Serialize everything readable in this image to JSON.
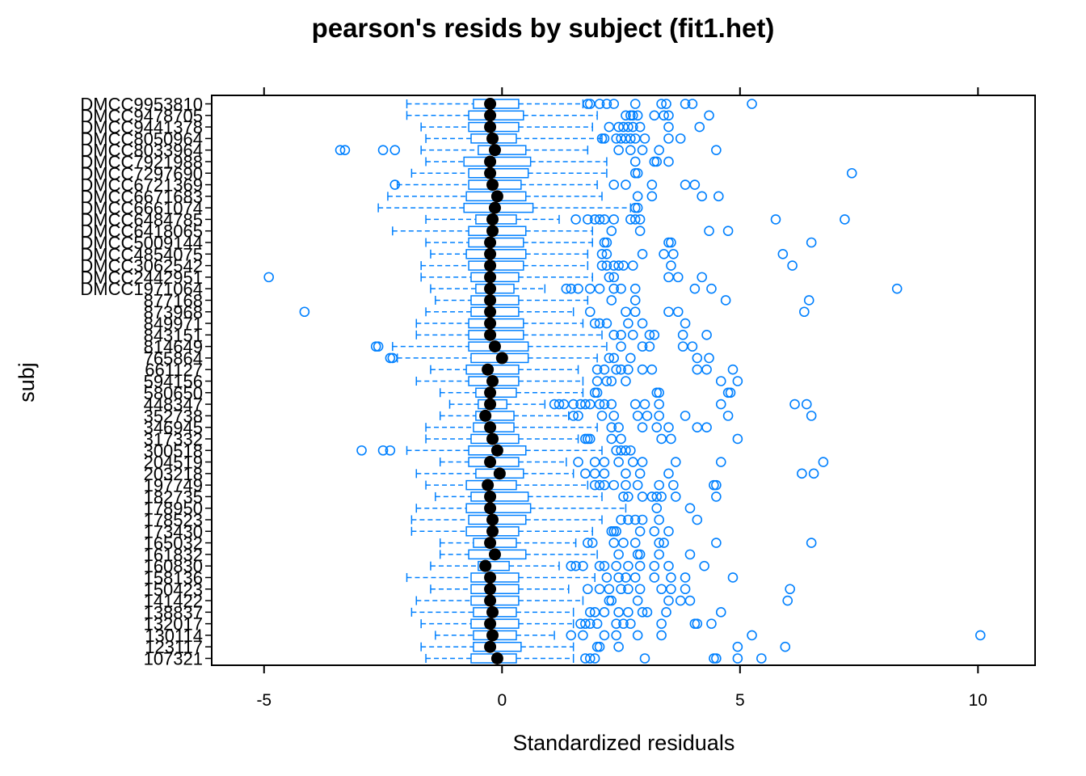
{
  "chart_data": {
    "type": "boxplot",
    "title": "pearson's resids by subject (fit1.het)",
    "xlabel": "Standardized residuals",
    "ylabel": "subj",
    "xlim": [
      -6.1,
      11.2
    ],
    "xticks": [
      -5,
      0,
      5,
      10
    ],
    "xtick_labels": [
      "-5",
      "0",
      "5",
      "10"
    ],
    "grid": false,
    "colors": {
      "box": "#0080ff",
      "median": "#000000",
      "frame": "#000000"
    },
    "groups": [
      {
        "label": "DMCC9953810",
        "whisker_low": -2.0,
        "q1": -0.6,
        "median": -0.25,
        "q3": 0.35,
        "whisker_high": 1.7,
        "outliers": [
          1.8,
          1.85,
          2.05,
          2.2,
          2.35,
          2.8,
          3.35,
          3.45,
          3.85,
          4.0,
          5.25
        ]
      },
      {
        "label": "DMCC9478705",
        "whisker_low": -2.0,
        "q1": -0.7,
        "median": -0.25,
        "q3": 0.45,
        "whisker_high": 2.0,
        "outliers": [
          2.6,
          2.7,
          2.75,
          2.85,
          3.2,
          3.4,
          3.5,
          4.35
        ]
      },
      {
        "label": "DMCC9441378",
        "whisker_low": -1.7,
        "q1": -0.7,
        "median": -0.25,
        "q3": 0.35,
        "whisker_high": 1.9,
        "outliers": [
          2.25,
          2.45,
          2.55,
          2.65,
          2.75,
          2.9,
          3.5,
          4.15
        ]
      },
      {
        "label": "DMCC8050964",
        "whisker_low": -1.6,
        "q1": -0.65,
        "median": -0.2,
        "q3": 0.3,
        "whisker_high": 2.1,
        "outliers": [
          2.1,
          2.15,
          2.4,
          2.5,
          2.6,
          2.7,
          2.8,
          3.0,
          3.5,
          3.75
        ]
      },
      {
        "label": "DMCC8033964",
        "whisker_low": -1.7,
        "q1": -0.5,
        "median": -0.15,
        "q3": 0.5,
        "whisker_high": 1.8,
        "outliers": [
          -3.4,
          -3.3,
          -2.5,
          -2.25,
          2.45,
          2.7,
          2.95,
          3.3,
          4.5
        ]
      },
      {
        "label": "DMCC7921988",
        "whisker_low": -1.6,
        "q1": -0.8,
        "median": -0.25,
        "q3": 0.6,
        "whisker_high": 2.2,
        "outliers": [
          2.8,
          3.2,
          3.25,
          3.5
        ]
      },
      {
        "label": "DMCC7297690",
        "whisker_low": -1.9,
        "q1": -0.7,
        "median": -0.25,
        "q3": 0.55,
        "whisker_high": 2.2,
        "outliers": [
          2.8,
          2.85,
          7.35
        ]
      },
      {
        "label": "DMCC6721369",
        "whisker_low": -2.2,
        "q1": -0.7,
        "median": -0.2,
        "q3": 0.4,
        "whisker_high": 2.0,
        "outliers": [
          -2.25,
          2.35,
          2.6,
          3.15,
          3.85,
          4.05
        ]
      },
      {
        "label": "DMCC6671683",
        "whisker_low": -2.4,
        "q1": -0.75,
        "median": -0.1,
        "q3": 0.5,
        "whisker_high": 2.1,
        "outliers": [
          2.85,
          3.15,
          4.2,
          4.55
        ]
      },
      {
        "label": "DMCC6661074",
        "whisker_low": -2.6,
        "q1": -0.8,
        "median": -0.15,
        "q3": 0.65,
        "whisker_high": 2.7,
        "outliers": [
          2.8,
          2.85
        ]
      },
      {
        "label": "DMCC6484785",
        "whisker_low": -1.6,
        "q1": -0.55,
        "median": -0.2,
        "q3": 0.3,
        "whisker_high": 1.2,
        "outliers": [
          1.55,
          1.8,
          1.95,
          2.05,
          2.15,
          2.35,
          2.7,
          2.8,
          2.9,
          5.75,
          7.2
        ]
      },
      {
        "label": "DMCC6418065",
        "whisker_low": -2.3,
        "q1": -0.7,
        "median": -0.2,
        "q3": 0.5,
        "whisker_high": 1.9,
        "outliers": [
          2.3,
          2.9,
          4.35,
          4.75
        ]
      },
      {
        "label": "DMCC5009144",
        "whisker_low": -1.6,
        "q1": -0.7,
        "median": -0.25,
        "q3": 0.45,
        "whisker_high": 1.9,
        "outliers": [
          2.15,
          2.2,
          3.55,
          3.5,
          6.5
        ]
      },
      {
        "label": "DMCC4854075",
        "whisker_low": -1.5,
        "q1": -0.75,
        "median": -0.25,
        "q3": 0.5,
        "whisker_high": 1.8,
        "outliers": [
          2.1,
          2.2,
          2.95,
          3.4,
          3.6,
          5.9
        ]
      },
      {
        "label": "DMCC3062542",
        "whisker_low": -1.7,
        "q1": -0.7,
        "median": -0.25,
        "q3": 0.45,
        "whisker_high": 1.8,
        "outliers": [
          2.1,
          2.2,
          2.35,
          2.45,
          2.55,
          2.75,
          3.55,
          6.1
        ]
      },
      {
        "label": "DMCC2442951",
        "whisker_low": -1.7,
        "q1": -0.65,
        "median": -0.25,
        "q3": 0.35,
        "whisker_high": 1.9,
        "outliers": [
          -4.9,
          2.25,
          2.35,
          3.5,
          3.7,
          4.2
        ]
      },
      {
        "label": "DMCC1971064",
        "whisker_low": -1.5,
        "q1": -0.55,
        "median": -0.25,
        "q3": 0.25,
        "whisker_high": 0.9,
        "outliers": [
          1.35,
          1.45,
          1.6,
          1.85,
          2.05,
          2.35,
          2.5,
          2.8,
          4.05,
          4.4,
          8.3
        ]
      },
      {
        "label": "877168",
        "whisker_low": -1.4,
        "q1": -0.65,
        "median": -0.25,
        "q3": 0.35,
        "whisker_high": 1.8,
        "outliers": [
          2.3,
          2.8,
          4.7,
          6.45
        ]
      },
      {
        "label": "873968",
        "whisker_low": -1.6,
        "q1": -0.65,
        "median": -0.25,
        "q3": 0.35,
        "whisker_high": 1.5,
        "outliers": [
          -4.15,
          1.85,
          2.6,
          2.8,
          3.5,
          3.7,
          6.35
        ]
      },
      {
        "label": "849971",
        "whisker_low": -1.8,
        "q1": -0.7,
        "median": -0.25,
        "q3": 0.45,
        "whisker_high": 1.7,
        "outliers": [
          1.95,
          2.05,
          2.2,
          2.65,
          2.95,
          3.85
        ]
      },
      {
        "label": "843151",
        "whisker_low": -1.8,
        "q1": -0.7,
        "median": -0.25,
        "q3": 0.45,
        "whisker_high": 2.1,
        "outliers": [
          2.35,
          2.5,
          2.75,
          3.1,
          3.2,
          3.8,
          4.3
        ]
      },
      {
        "label": "814649",
        "whisker_low": -2.3,
        "q1": -0.7,
        "median": -0.15,
        "q3": 0.55,
        "whisker_high": 2.2,
        "outliers": [
          -2.65,
          -2.6,
          2.5,
          2.95,
          3.1,
          3.8,
          4.0
        ]
      },
      {
        "label": "765864",
        "whisker_low": -2.2,
        "q1": -0.65,
        "median": 0.0,
        "q3": 0.55,
        "whisker_high": 2.0,
        "outliers": [
          -2.35,
          -2.3,
          2.25,
          2.35,
          2.7,
          4.1,
          4.35
        ]
      },
      {
        "label": "661127",
        "whisker_low": -1.5,
        "q1": -0.75,
        "median": -0.3,
        "q3": 0.35,
        "whisker_high": 1.6,
        "outliers": [
          2.0,
          2.15,
          2.4,
          2.5,
          2.65,
          2.95,
          3.15,
          4.1,
          4.3,
          4.85
        ]
      },
      {
        "label": "594156",
        "whisker_low": -1.8,
        "q1": -0.7,
        "median": -0.2,
        "q3": 0.35,
        "whisker_high": 1.7,
        "outliers": [
          2.0,
          2.2,
          2.3,
          2.6,
          4.6,
          4.95
        ]
      },
      {
        "label": "580650",
        "whisker_low": -1.3,
        "q1": -0.55,
        "median": -0.25,
        "q3": 0.3,
        "whisker_high": 1.7,
        "outliers": [
          1.95,
          2.0,
          3.25,
          3.3,
          4.75,
          4.8
        ]
      },
      {
        "label": "448347",
        "whisker_low": -1.1,
        "q1": -0.5,
        "median": -0.25,
        "q3": 0.1,
        "whisker_high": 0.9,
        "outliers": [
          1.1,
          1.2,
          1.3,
          1.5,
          1.65,
          1.75,
          1.85,
          2.05,
          2.15,
          2.3,
          2.8,
          3.0,
          3.3,
          4.6,
          6.15,
          6.4
        ]
      },
      {
        "label": "352738",
        "whisker_low": -1.3,
        "q1": -0.55,
        "median": -0.35,
        "q3": 0.25,
        "whisker_high": 1.4,
        "outliers": [
          1.5,
          1.6,
          2.1,
          2.35,
          2.85,
          3.05,
          3.3,
          3.85,
          4.75,
          6.5
        ]
      },
      {
        "label": "346945",
        "whisker_low": -1.6,
        "q1": -0.6,
        "median": -0.25,
        "q3": 0.25,
        "whisker_high": 2.0,
        "outliers": [
          2.3,
          2.45,
          2.95,
          3.25,
          3.5,
          4.1,
          4.3
        ]
      },
      {
        "label": "317332",
        "whisker_low": -1.6,
        "q1": -0.65,
        "median": -0.2,
        "q3": 0.35,
        "whisker_high": 1.6,
        "outliers": [
          1.75,
          1.8,
          1.85,
          2.3,
          2.5,
          3.35,
          3.55,
          4.95
        ]
      },
      {
        "label": "300518",
        "whisker_low": -2.0,
        "q1": -0.7,
        "median": -0.1,
        "q3": 0.5,
        "whisker_high": 2.1,
        "outliers": [
          -2.95,
          -2.5,
          -2.35,
          2.4,
          2.5,
          2.6,
          2.7
        ]
      },
      {
        "label": "204519",
        "whisker_low": -1.3,
        "q1": -0.7,
        "median": -0.25,
        "q3": 0.35,
        "whisker_high": 1.35,
        "outliers": [
          1.6,
          1.95,
          2.15,
          2.45,
          2.75,
          2.95,
          3.65,
          4.6,
          6.75
        ]
      },
      {
        "label": "203218",
        "whisker_low": -1.8,
        "q1": -0.55,
        "median": -0.05,
        "q3": 0.45,
        "whisker_high": 1.5,
        "outliers": [
          1.75,
          1.95,
          2.15,
          2.6,
          2.9,
          3.5,
          6.3,
          6.55
        ]
      },
      {
        "label": "197749",
        "whisker_low": -1.6,
        "q1": -0.75,
        "median": -0.3,
        "q3": 0.3,
        "whisker_high": 1.8,
        "outliers": [
          1.95,
          2.05,
          2.15,
          2.35,
          2.6,
          2.85,
          3.3,
          3.6,
          4.45,
          4.5
        ]
      },
      {
        "label": "182735",
        "whisker_low": -1.4,
        "q1": -0.65,
        "median": -0.25,
        "q3": 0.55,
        "whisker_high": 2.1,
        "outliers": [
          2.55,
          2.65,
          2.95,
          3.15,
          3.25,
          3.35,
          3.65,
          4.5
        ]
      },
      {
        "label": "178950",
        "whisker_low": -1.8,
        "q1": -0.75,
        "median": -0.25,
        "q3": 0.6,
        "whisker_high": 2.6,
        "outliers": [
          3.25,
          3.95
        ]
      },
      {
        "label": "178523",
        "whisker_low": -1.9,
        "q1": -0.7,
        "median": -0.2,
        "q3": 0.5,
        "whisker_high": 2.1,
        "outliers": [
          2.5,
          2.65,
          2.8,
          2.95,
          3.3,
          4.1
        ]
      },
      {
        "label": "173430",
        "whisker_low": -1.9,
        "q1": -0.75,
        "median": -0.2,
        "q3": 0.35,
        "whisker_high": 1.9,
        "outliers": [
          2.3,
          2.35,
          2.4,
          2.9,
          3.2,
          3.5
        ]
      },
      {
        "label": "165032",
        "whisker_low": -1.3,
        "q1": -0.6,
        "median": -0.25,
        "q3": 0.3,
        "whisker_high": 1.55,
        "outliers": [
          1.8,
          1.9,
          2.35,
          2.55,
          2.8,
          3.3,
          3.4,
          4.5,
          6.5
        ]
      },
      {
        "label": "161832",
        "whisker_low": -1.3,
        "q1": -0.7,
        "median": -0.15,
        "q3": 0.5,
        "whisker_high": 2.0,
        "outliers": [
          2.45,
          2.85,
          2.9,
          3.3,
          3.95
        ]
      },
      {
        "label": "160830",
        "whisker_low": -1.5,
        "q1": -0.5,
        "median": -0.35,
        "q3": 0.15,
        "whisker_high": 1.2,
        "outliers": [
          1.45,
          1.55,
          1.7,
          2.05,
          2.15,
          2.4,
          2.65,
          2.9,
          3.2,
          3.5,
          4.25
        ]
      },
      {
        "label": "158136",
        "whisker_low": -2.0,
        "q1": -0.65,
        "median": -0.25,
        "q3": 0.35,
        "whisker_high": 1.95,
        "outliers": [
          2.2,
          2.45,
          2.6,
          2.8,
          3.2,
          3.55,
          3.85,
          4.85
        ]
      },
      {
        "label": "150423",
        "whisker_low": -1.5,
        "q1": -0.65,
        "median": -0.25,
        "q3": 0.35,
        "whisker_high": 1.4,
        "outliers": [
          1.8,
          2.05,
          2.25,
          2.5,
          2.65,
          2.9,
          3.35,
          3.55,
          3.85,
          6.05
        ]
      },
      {
        "label": "141422",
        "whisker_low": -1.8,
        "q1": -0.65,
        "median": -0.25,
        "q3": 0.35,
        "whisker_high": 1.7,
        "outliers": [
          2.25,
          2.3,
          2.85,
          3.5,
          3.75,
          3.95,
          6.0
        ]
      },
      {
        "label": "138837",
        "whisker_low": -1.9,
        "q1": -0.6,
        "median": -0.2,
        "q3": 0.3,
        "whisker_high": 1.5,
        "outliers": [
          1.85,
          1.95,
          2.15,
          2.45,
          2.65,
          2.95,
          3.05,
          3.45,
          4.6
        ]
      },
      {
        "label": "132017",
        "whisker_low": -1.7,
        "q1": -0.65,
        "median": -0.25,
        "q3": 0.35,
        "whisker_high": 1.5,
        "outliers": [
          1.65,
          1.75,
          1.85,
          2.0,
          2.4,
          2.55,
          2.7,
          3.35,
          4.05,
          4.1,
          4.4
        ]
      },
      {
        "label": "130114",
        "whisker_low": -1.4,
        "q1": -0.6,
        "median": -0.2,
        "q3": 0.3,
        "whisker_high": 1.1,
        "outliers": [
          1.45,
          1.7,
          2.15,
          2.4,
          2.85,
          3.35,
          5.25,
          10.05
        ]
      },
      {
        "label": "123117",
        "whisker_low": -1.7,
        "q1": -0.6,
        "median": -0.25,
        "q3": 0.4,
        "whisker_high": 1.5,
        "outliers": [
          2.0,
          2.05,
          2.45,
          4.95,
          5.95
        ]
      },
      {
        "label": "107321",
        "whisker_low": -1.6,
        "q1": -0.65,
        "median": -0.1,
        "q3": 0.3,
        "whisker_high": 1.5,
        "outliers": [
          1.75,
          1.85,
          1.95,
          3.0,
          4.45,
          4.5,
          4.95,
          5.45
        ]
      }
    ]
  }
}
